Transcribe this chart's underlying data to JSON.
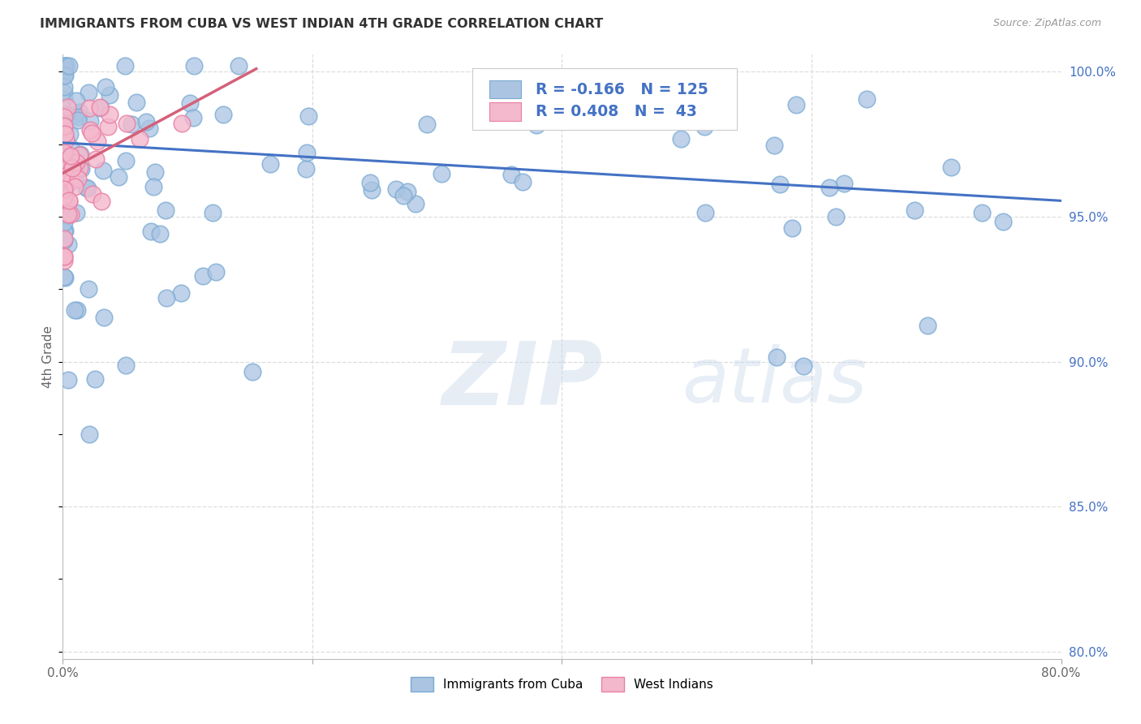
{
  "title": "IMMIGRANTS FROM CUBA VS WEST INDIAN 4TH GRADE CORRELATION CHART",
  "source": "Source: ZipAtlas.com",
  "ylabel": "4th Grade",
  "x_min": 0.0,
  "x_max": 0.8,
  "y_min": 0.7975,
  "y_max": 1.006,
  "x_ticks": [
    0.0,
    0.2,
    0.4,
    0.6,
    0.8
  ],
  "x_tick_labels": [
    "0.0%",
    "",
    "",
    "",
    "80.0%"
  ],
  "y_ticks": [
    0.8,
    0.85,
    0.9,
    0.95,
    1.0
  ],
  "y_tick_labels": [
    "80.0%",
    "85.0%",
    "90.0%",
    "95.0%",
    "100.0%"
  ],
  "cuba_color": "#aac4e2",
  "cuba_edge": "#7aaad4",
  "west_indian_color": "#f4b8cc",
  "west_indian_edge": "#e880a4",
  "cuba_R": -0.166,
  "cuba_N": 125,
  "west_indian_R": 0.408,
  "west_indian_N": 43,
  "trend_cuba_color": "#4472c4",
  "trend_west_color": "#d4607a",
  "legend_label_cuba": "Immigrants from Cuba",
  "legend_label_west": "West Indians",
  "grid_color": "#dddddd",
  "background_color": "#ffffff"
}
